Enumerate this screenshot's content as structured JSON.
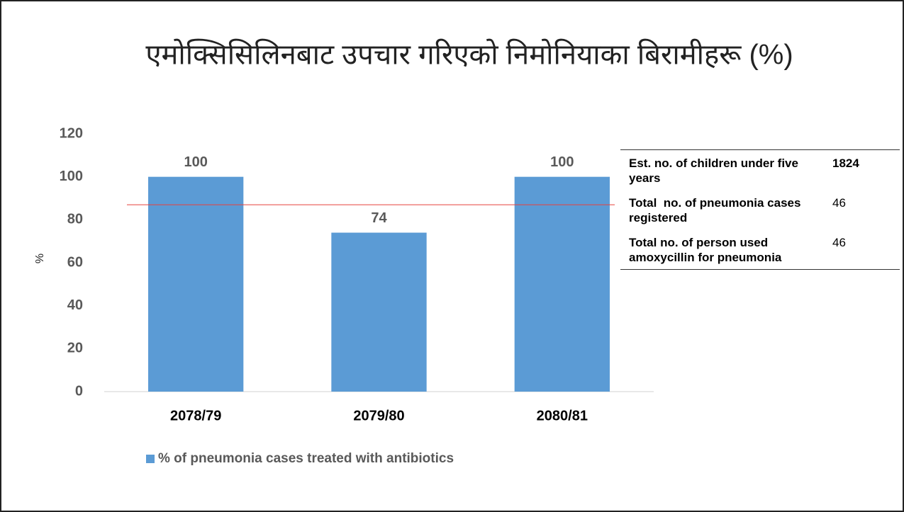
{
  "chart_data": {
    "type": "bar",
    "title": "एमोक्सिसिलिनबाट उपचार गरिएको निमोनियाका बिरामीहरू (%)",
    "y_label": "%",
    "categories": [
      "2078/79",
      "2079/80",
      "2080/81"
    ],
    "series": [
      {
        "name": "% of pneumonia cases treated with antibiotics",
        "color": "#5b9bd5",
        "values": [
          100,
          74,
          100
        ]
      }
    ],
    "ylim": [
      0,
      120
    ],
    "yticks": [
      0,
      20,
      40,
      60,
      80,
      100,
      120
    ],
    "grid": false,
    "reference_value": 87,
    "reference_color": "#e8413c",
    "legend": "bottom"
  },
  "table": {
    "rows": [
      [
        "Est. no. of children under five years",
        1824
      ],
      [
        "Total  no. of pneumonia cases registered",
        46
      ],
      [
        "Total no. of person used amoxycillin for pneumonia",
        46
      ]
    ]
  }
}
